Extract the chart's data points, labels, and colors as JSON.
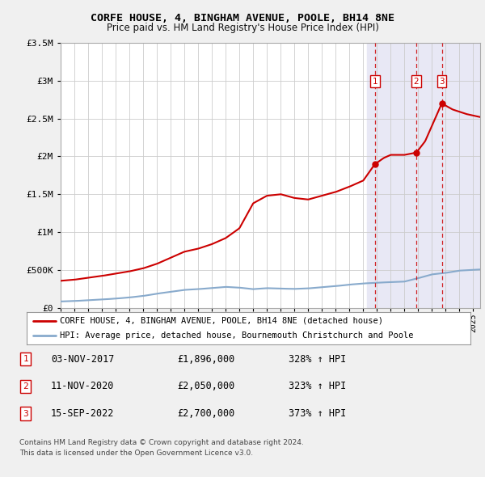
{
  "title": "CORFE HOUSE, 4, BINGHAM AVENUE, POOLE, BH14 8NE",
  "subtitle": "Price paid vs. HM Land Registry's House Price Index (HPI)",
  "legend_line1": "CORFE HOUSE, 4, BINGHAM AVENUE, POOLE, BH14 8NE (detached house)",
  "legend_line2": "HPI: Average price, detached house, Bournemouth Christchurch and Poole",
  "footer1": "Contains HM Land Registry data © Crown copyright and database right 2024.",
  "footer2": "This data is licensed under the Open Government Licence v3.0.",
  "sales": [
    {
      "num": 1,
      "date": "03-NOV-2017",
      "price": "£1,896,000",
      "pct": "328% ↑ HPI",
      "year": 2017.84
    },
    {
      "num": 2,
      "date": "11-NOV-2020",
      "price": "£2,050,000",
      "pct": "323% ↑ HPI",
      "year": 2020.86
    },
    {
      "num": 3,
      "date": "15-SEP-2022",
      "price": "£2,700,000",
      "pct": "373% ↑ HPI",
      "year": 2022.71
    }
  ],
  "sale_prices": [
    1896000,
    2050000,
    2700000
  ],
  "ylim": [
    0,
    3500000
  ],
  "xlim_start": 1995.0,
  "xlim_end": 2025.5,
  "background_color": "#f0f0f0",
  "plot_bg_color": "#ffffff",
  "red_color": "#cc0000",
  "blue_color": "#88aacc",
  "grid_color": "#cccccc",
  "shade_color": "#e8e8f5",
  "hpi_keypoints": [
    [
      1995.0,
      82000
    ],
    [
      1996.0,
      88000
    ],
    [
      1997.0,
      98000
    ],
    [
      1998.0,
      108000
    ],
    [
      1999.0,
      120000
    ],
    [
      2000.0,
      135000
    ],
    [
      2001.0,
      155000
    ],
    [
      2002.0,
      185000
    ],
    [
      2003.0,
      210000
    ],
    [
      2004.0,
      235000
    ],
    [
      2005.0,
      245000
    ],
    [
      2006.0,
      260000
    ],
    [
      2007.0,
      275000
    ],
    [
      2008.0,
      265000
    ],
    [
      2009.0,
      245000
    ],
    [
      2010.0,
      258000
    ],
    [
      2011.0,
      252000
    ],
    [
      2012.0,
      248000
    ],
    [
      2013.0,
      255000
    ],
    [
      2014.0,
      270000
    ],
    [
      2015.0,
      285000
    ],
    [
      2016.0,
      305000
    ],
    [
      2017.0,
      320000
    ],
    [
      2018.0,
      330000
    ],
    [
      2019.0,
      338000
    ],
    [
      2020.0,
      345000
    ],
    [
      2021.0,
      390000
    ],
    [
      2022.0,
      440000
    ],
    [
      2023.0,
      460000
    ],
    [
      2024.0,
      490000
    ],
    [
      2025.5,
      505000
    ]
  ],
  "red_keypoints": [
    [
      1995.0,
      355000
    ],
    [
      1996.0,
      370000
    ],
    [
      1997.0,
      395000
    ],
    [
      1998.0,
      420000
    ],
    [
      1999.0,
      450000
    ],
    [
      2000.0,
      480000
    ],
    [
      2001.0,
      520000
    ],
    [
      2002.0,
      580000
    ],
    [
      2003.0,
      660000
    ],
    [
      2004.0,
      740000
    ],
    [
      2005.0,
      780000
    ],
    [
      2006.0,
      840000
    ],
    [
      2007.0,
      920000
    ],
    [
      2008.0,
      1050000
    ],
    [
      2009.0,
      1380000
    ],
    [
      2010.0,
      1480000
    ],
    [
      2011.0,
      1500000
    ],
    [
      2012.0,
      1450000
    ],
    [
      2013.0,
      1430000
    ],
    [
      2014.0,
      1480000
    ],
    [
      2015.0,
      1530000
    ],
    [
      2016.0,
      1600000
    ],
    [
      2017.0,
      1680000
    ],
    [
      2017.84,
      1896000
    ],
    [
      2018.5,
      1980000
    ],
    [
      2019.0,
      2020000
    ],
    [
      2020.0,
      2020000
    ],
    [
      2020.86,
      2050000
    ],
    [
      2021.5,
      2200000
    ],
    [
      2022.71,
      2700000
    ],
    [
      2023.5,
      2620000
    ],
    [
      2024.5,
      2560000
    ],
    [
      2025.5,
      2520000
    ]
  ]
}
